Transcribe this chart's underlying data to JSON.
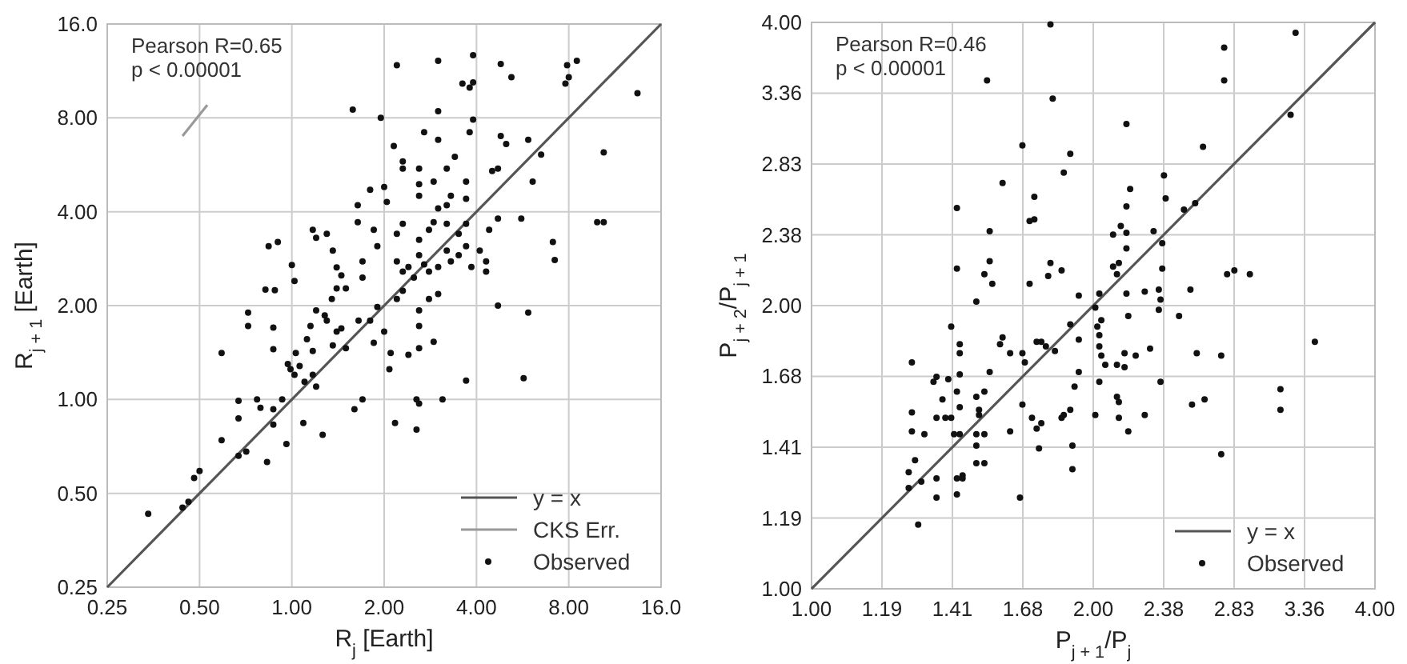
{
  "chart_data": [
    {
      "type": "scatter",
      "xlabel": "R$_{j}$ [Earth]",
      "ylabel": "R$_{j + 1}$ [Earth]",
      "annotations": [
        "Pearson R=0.65",
        "p < 0.00001"
      ],
      "log": "xy",
      "grid": true,
      "legend": "bottom right",
      "xlim": [
        0.25,
        16
      ],
      "ylim": [
        0.25,
        16
      ],
      "xticks": [
        0.25,
        {
          "value": 0.5,
          "label": "0.50"
        },
        {
          "value": 1,
          "label": "1.00"
        },
        {
          "value": 2,
          "label": "2.00"
        },
        {
          "value": 4,
          "label": "4.00"
        },
        {
          "value": 8,
          "label": "8.00"
        },
        {
          "value": 16,
          "label": "16.0"
        }
      ],
      "yticks": [
        0.25,
        {
          "value": 0.5,
          "label": "0.50"
        },
        {
          "value": 1,
          "label": "1.00"
        },
        {
          "value": 2,
          "label": "2.00"
        },
        {
          "value": 4,
          "label": "4.00"
        },
        {
          "value": 8,
          "label": "8.00"
        },
        {
          "value": 16,
          "label": "16.0"
        }
      ],
      "series": [
        {
          "name": "y = x",
          "type": "line",
          "color": "#555555",
          "x": [
            0.25,
            16
          ],
          "values": [
            0.25,
            16
          ]
        },
        {
          "name": "CKS Err.",
          "type": "line",
          "color": "#999999",
          "x": [
            0.44,
            0.53
          ],
          "values": [
            7.0,
            8.8
          ]
        },
        {
          "name": "Observed",
          "type": "scatter",
          "marker": "circle",
          "color": "#111111",
          "x": [
            2.2,
            3.0,
            3.9,
            3.6,
            3.8,
            3.9,
            4.8,
            5.2,
            7.8,
            8.0,
            8.5,
            7.9,
            13.4,
            1.58,
            1.95,
            3.0,
            3.9,
            2.15,
            2.7,
            3.0,
            3.8,
            3.4,
            4.8,
            5.0,
            5.9,
            6.5,
            4.5,
            4.7,
            6.1,
            2.3,
            2.3,
            2.6,
            2.6,
            2.9,
            2.6,
            3.2,
            3.7,
            10.4,
            9.9,
            10.4,
            7.1,
            7.2,
            5.6,
            4.7,
            4.4,
            4.7,
            5.9,
            5.7,
            3.7,
            3.1,
            2.55,
            2.17,
            2.55,
            2.6,
            1.6,
            1.7,
            1.26,
            1.09,
            0.96,
            0.83,
            0.87,
            0.77,
            0.79,
            0.87,
            0.93,
            0.67,
            0.67,
            0.59,
            0.67,
            0.71,
            0.48,
            0.5,
            0.44,
            0.46,
            0.34,
            0.59,
            0.72,
            0.72,
            0.87,
            0.87,
            0.82,
            0.88,
            0.84,
            0.9,
            1.0,
            1.02,
            0.97,
            0.99,
            1.02,
            1.03,
            1.06,
            1.1,
            1.17,
            1.17,
            1.2,
            1.17,
            1.2,
            1.3,
            1.36,
            1.64,
            1.64,
            1.8,
            2.0,
            2.04,
            1.4,
            1.45,
            1.5,
            1.4,
            1.35,
            1.7,
            1.85,
            1.9,
            1.7,
            1.2,
            1.3,
            1.4,
            1.5,
            1.65,
            1.85,
            2.0,
            2.08,
            2.1,
            1.12,
            1.15,
            1.28,
            1.36,
            1.45,
            1.8,
            1.9,
            2.2,
            2.3,
            2.4,
            2.5,
            2.6,
            2.7,
            2.8,
            3.0,
            3.2,
            3.3,
            3.5,
            3.7,
            3.85,
            2.2,
            2.3,
            2.6,
            2.8,
            3.2,
            3.5,
            3.7,
            2.2,
            2.3,
            2.6,
            2.8,
            3.0,
            2.6,
            2.9,
            2.4,
            2.6,
            4.3,
            4.3,
            4.1,
            3.2,
            3.3,
            3.7,
            2.9,
            3.0
          ],
          "values": [
            11.8,
            12.2,
            12.7,
            10.3,
            10.0,
            10.4,
            11.9,
            10.8,
            10.3,
            10.8,
            12.2,
            11.8,
            9.6,
            8.5,
            8.0,
            8.4,
            7.9,
            6.5,
            7.2,
            6.8,
            7.2,
            6.0,
            7.0,
            6.6,
            6.8,
            6.1,
            5.4,
            5.5,
            5.0,
            5.8,
            5.5,
            5.5,
            4.9,
            5.0,
            4.5,
            5.5,
            5.0,
            6.2,
            3.7,
            3.7,
            3.2,
            2.8,
            3.8,
            3.8,
            3.5,
            2.0,
            1.9,
            1.17,
            1.15,
            1.0,
            0.8,
            0.84,
            1.0,
            0.97,
            0.93,
            1.0,
            0.77,
            0.84,
            0.72,
            0.63,
            0.83,
            1.0,
            0.94,
            0.93,
            1.0,
            0.99,
            0.87,
            0.74,
            0.66,
            0.68,
            0.56,
            0.59,
            0.45,
            0.47,
            0.43,
            1.41,
            1.9,
            1.72,
            1.7,
            1.45,
            2.25,
            2.24,
            3.1,
            3.2,
            2.7,
            2.4,
            1.3,
            1.25,
            1.2,
            1.41,
            1.28,
            1.14,
            1.43,
            1.2,
            1.1,
            3.5,
            3.3,
            3.4,
            3.0,
            4.2,
            3.7,
            4.7,
            4.8,
            4.3,
            2.65,
            2.5,
            2.27,
            2.27,
            2.1,
            2.77,
            3.5,
            3.1,
            2.46,
            1.93,
            1.79,
            1.65,
            1.46,
            1.79,
            1.52,
            1.65,
            1.25,
            1.41,
            1.56,
            1.72,
            1.86,
            1.49,
            1.69,
            1.79,
            1.98,
            2.77,
            2.57,
            2.66,
            2.46,
            2.9,
            2.71,
            2.57,
            2.66,
            3.0,
            2.77,
            2.9,
            3.1,
            2.66,
            3.4,
            3.66,
            3.25,
            3.5,
            3.66,
            3.4,
            3.66,
            2.1,
            2.23,
            1.93,
            2.1,
            2.18,
            1.72,
            1.53,
            1.39,
            1.46,
            2.77,
            2.57,
            3.0,
            4.2,
            4.5,
            4.4,
            3.7,
            4.1
          ]
        }
      ]
    },
    {
      "type": "scatter",
      "xlabel": "P$_{j + 1}$/P$_{j}$",
      "ylabel": "P$_{j + 2}$/P$_{j + 1}$",
      "annotations": [
        "Pearson R=0.46",
        "p < 0.00001"
      ],
      "log": "xy",
      "grid": true,
      "legend": "bottom right",
      "xlim": [
        1,
        4
      ],
      "ylim": [
        1,
        4
      ],
      "xticks": [
        {
          "value": 1,
          "label": "1.00"
        },
        {
          "value": 1.1892,
          "label": "1.19"
        },
        {
          "value": 1.4142,
          "label": "1.41"
        },
        {
          "value": 1.6818,
          "label": "1.68"
        },
        {
          "value": 2,
          "label": "2.00"
        },
        {
          "value": 2.3784,
          "label": "2.38"
        },
        {
          "value": 2.8284,
          "label": "2.83"
        },
        {
          "value": 3.3636,
          "label": "3.36"
        },
        {
          "value": 4,
          "label": "4.00"
        }
      ],
      "yticks": [
        {
          "value": 1,
          "label": "1.00"
        },
        {
          "value": 1.1892,
          "label": "1.19"
        },
        {
          "value": 1.4142,
          "label": "1.41"
        },
        {
          "value": 1.6818,
          "label": "1.68"
        },
        {
          "value": 2,
          "label": "2.00"
        },
        {
          "value": 2.3784,
          "label": "2.38"
        },
        {
          "value": 2.8284,
          "label": "2.83"
        },
        {
          "value": 3.3636,
          "label": "3.36"
        },
        {
          "value": 4,
          "label": "4.00"
        }
      ],
      "series": [
        {
          "name": "y = x",
          "type": "line",
          "color": "#555555",
          "x": [
            1,
            4
          ],
          "values": [
            1,
            4
          ]
        },
        {
          "name": "Observed",
          "type": "scatter",
          "marker": "circle",
          "color": "#111111",
          "x": [
            1.8,
            3.29,
            2.76,
            2.76,
            1.54,
            1.81,
            2.17,
            3.25,
            1.68,
            1.89,
            2.62,
            1.86,
            1.6,
            2.38,
            2.39,
            2.17,
            2.19,
            2.5,
            2.57,
            1.43,
            1.73,
            1.71,
            1.73,
            1.55,
            2.14,
            2.17,
            2.32,
            2.37,
            2.1,
            1.43,
            1.55,
            1.53,
            1.56,
            1.71,
            1.79,
            1.8,
            1.85,
            1.5,
            2.1,
            2.13,
            2.12,
            2.17,
            2.37,
            2.54,
            2.47,
            2.78,
            2.83,
            2.94,
            3.45,
            2.17,
            2.18,
            2.27,
            2.35,
            2.36,
            2.35,
            1.93,
            2.01,
            2.03,
            2.02,
            2.04,
            1.89,
            1.93,
            2.03,
            2.03,
            2.04,
            2.06,
            2.12,
            2.16,
            2.16,
            2.22,
            2.3,
            2.58,
            2.74,
            2.63,
            2.55,
            2.74,
            3.17,
            3.17,
            2.36,
            2.27,
            2.18,
            2.13,
            2.01,
            2.12,
            2.13,
            2.03,
            1.93,
            1.91,
            1.89,
            1.86,
            1.85,
            1.9,
            1.9,
            1.82,
            1.76,
            1.78,
            1.74,
            1.63,
            1.68,
            1.69,
            1.6,
            1.59,
            1.68,
            1.72,
            1.76,
            1.74,
            1.75,
            1.63,
            1.67,
            1.44,
            1.44,
            1.44,
            1.41,
            1.55,
            1.43,
            1.5,
            1.53,
            1.44,
            1.51,
            1.51,
            1.41,
            1.39,
            1.42,
            1.44,
            1.5,
            1.5,
            1.53,
            1.36,
            1.35,
            1.4,
            1.38,
            1.36,
            1.32,
            1.28,
            1.28,
            1.28,
            1.27,
            1.29,
            1.27,
            1.31,
            1.36,
            1.36,
            1.3,
            1.43,
            1.43,
            1.45,
            1.45,
            1.5,
            1.53
          ],
          "values": [
            3.98,
            3.9,
            3.76,
            3.47,
            3.47,
            3.32,
            3.12,
            3.19,
            2.96,
            2.9,
            2.95,
            2.77,
            2.7,
            2.75,
            2.6,
            2.55,
            2.66,
            2.53,
            2.57,
            2.54,
            2.47,
            2.46,
            2.61,
            2.4,
            2.43,
            2.39,
            2.4,
            2.33,
            2.38,
            2.19,
            2.23,
            2.16,
            2.11,
            2.11,
            2.15,
            2.22,
            2.18,
            2.02,
            2.2,
            2.22,
            2.16,
            2.3,
            2.19,
            2.08,
            1.95,
            2.16,
            2.18,
            2.16,
            1.83,
            2.06,
            1.95,
            2.07,
            2.08,
            2.03,
            1.98,
            2.05,
            1.99,
            2.06,
            1.9,
            1.93,
            1.91,
            1.84,
            1.86,
            1.81,
            1.77,
            1.73,
            1.73,
            1.78,
            1.72,
            1.77,
            1.8,
            1.78,
            1.77,
            1.59,
            1.57,
            1.39,
            1.63,
            1.55,
            1.66,
            1.53,
            1.47,
            1.52,
            1.53,
            1.6,
            1.58,
            1.66,
            1.7,
            1.64,
            1.55,
            1.53,
            1.52,
            1.42,
            1.34,
            1.79,
            1.83,
            1.81,
            1.83,
            1.78,
            1.78,
            1.74,
            1.85,
            1.82,
            1.57,
            1.52,
            1.5,
            1.48,
            1.41,
            1.47,
            1.25,
            1.82,
            1.78,
            1.69,
            1.9,
            1.7,
            1.62,
            1.6,
            1.62,
            1.56,
            1.55,
            1.53,
            1.52,
            1.52,
            1.46,
            1.46,
            1.46,
            1.42,
            1.46,
            1.68,
            1.66,
            1.67,
            1.59,
            1.52,
            1.46,
            1.54,
            1.47,
            1.74,
            1.33,
            1.37,
            1.28,
            1.3,
            1.31,
            1.25,
            1.17,
            1.31,
            1.26,
            1.32,
            1.31,
            1.36,
            1.36
          ]
        }
      ]
    }
  ]
}
